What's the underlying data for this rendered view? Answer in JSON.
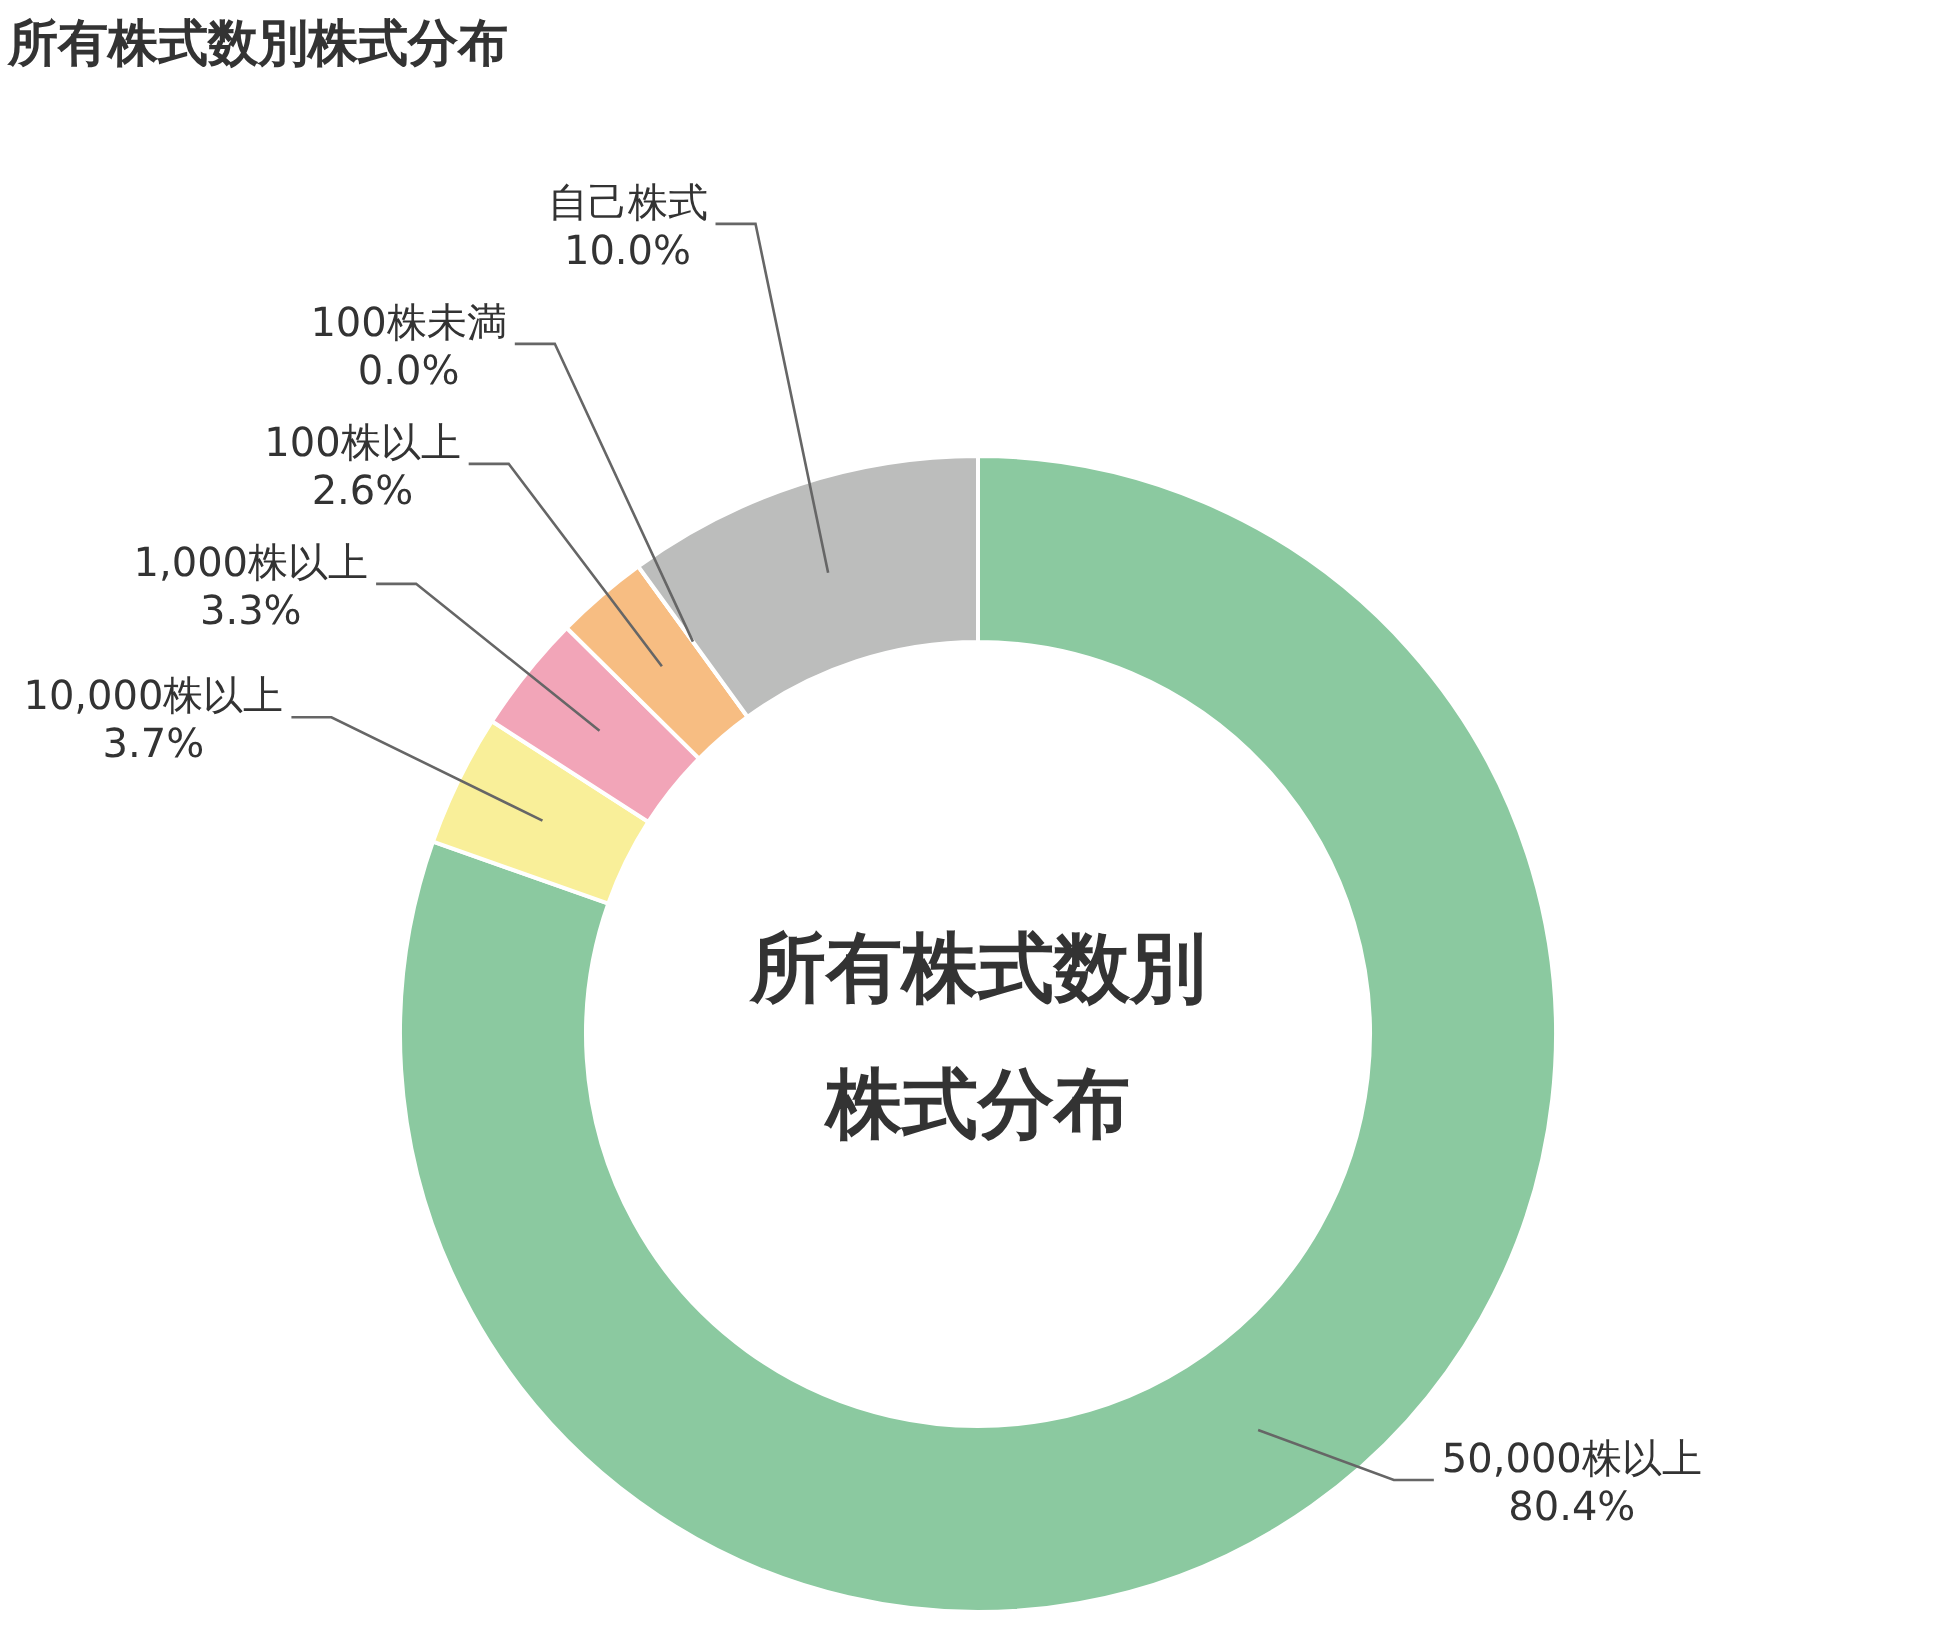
{
  "chart_data": {
    "type": "donut",
    "title": "所有株式数別株式分布",
    "categories": [
      "50,000株以上",
      "10,000株以上",
      "1,000株以上",
      "100株以上",
      "100株未満",
      "自己株式"
    ],
    "values": [
      80.4,
      3.7,
      3.3,
      2.6,
      0.0,
      10.0
    ],
    "value_labels": [
      "80.4%",
      "3.7%",
      "3.3%",
      "2.6%",
      "0.0%",
      "10.0%"
    ],
    "colors": [
      "#8bc9a0",
      "#f9ef99",
      "#f2a5b8",
      "#f7bd82",
      "#f5a26b",
      "#bcbdbc"
    ],
    "annotations": [
      "所有株式数別",
      "株式分布"
    ]
  }
}
